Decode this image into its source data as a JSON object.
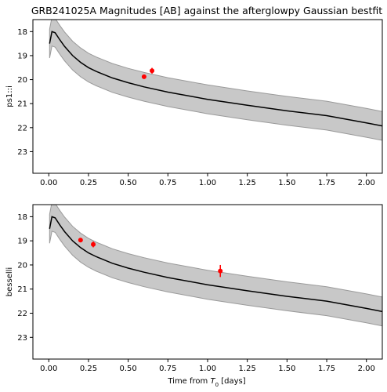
{
  "figure": {
    "title": "GRB241025A Magnitudes [AB] against the afterglowpy Gaussian bestfit",
    "xlabel_text": "Time from ",
    "xlabel_symbol": "T",
    "xlabel_subscript": "0",
    "xlabel_unit": " [days]"
  },
  "colors": {
    "model_line": "#000000",
    "model_band": "#c8c8c8",
    "model_band_edge": "#9a9a9a",
    "data_points": "#ff0000"
  },
  "chart_data": [
    {
      "type": "line",
      "panel": "top",
      "ylabel": "ps1::i",
      "xlim": [
        -0.1,
        2.1
      ],
      "ylim": [
        23.9,
        17.5
      ],
      "y_inverted": true,
      "grid": false,
      "xticks": [
        0.0,
        0.25,
        0.5,
        0.75,
        1.0,
        1.25,
        1.5,
        1.75,
        2.0
      ],
      "xtick_labels": [
        "0.00",
        "0.25",
        "0.50",
        "0.75",
        "1.00",
        "1.25",
        "1.50",
        "1.75",
        "2.00"
      ],
      "show_xtick_labels": true,
      "yticks": [
        18,
        19,
        20,
        21,
        22,
        23
      ],
      "ytick_labels": [
        "18",
        "19",
        "20",
        "21",
        "22",
        "23"
      ],
      "model": {
        "x": [
          0.005,
          0.02,
          0.04,
          0.07,
          0.1,
          0.15,
          0.2,
          0.25,
          0.3,
          0.4,
          0.5,
          0.6,
          0.75,
          1.0,
          1.25,
          1.5,
          1.75,
          2.0,
          2.1
        ],
        "y": [
          18.5,
          18.0,
          18.05,
          18.35,
          18.62,
          19.0,
          19.28,
          19.5,
          19.66,
          19.93,
          20.13,
          20.3,
          20.52,
          20.82,
          21.07,
          21.3,
          21.5,
          21.8,
          21.93
        ],
        "upper": [
          19.1,
          18.6,
          18.65,
          18.95,
          19.22,
          19.6,
          19.88,
          20.1,
          20.26,
          20.53,
          20.73,
          20.9,
          21.12,
          21.42,
          21.67,
          21.9,
          22.1,
          22.4,
          22.53
        ],
        "lower": [
          17.9,
          17.4,
          17.45,
          17.75,
          18.02,
          18.4,
          18.68,
          18.9,
          19.06,
          19.33,
          19.53,
          19.7,
          19.92,
          20.22,
          20.47,
          20.7,
          20.9,
          21.2,
          21.33
        ]
      },
      "points": [
        {
          "x": 0.6,
          "y": 19.88,
          "err": 0.05
        },
        {
          "x": 0.65,
          "y": 19.63,
          "err": 0.12
        }
      ]
    },
    {
      "type": "line",
      "panel": "bottom",
      "ylabel": "besselli",
      "xlim": [
        -0.1,
        2.1
      ],
      "ylim": [
        23.9,
        17.5
      ],
      "y_inverted": true,
      "grid": false,
      "xticks": [
        0.0,
        0.25,
        0.5,
        0.75,
        1.0,
        1.25,
        1.5,
        1.75,
        2.0
      ],
      "xtick_labels": [
        "0.00",
        "0.25",
        "0.50",
        "0.75",
        "1.00",
        "1.25",
        "1.50",
        "1.75",
        "2.00"
      ],
      "show_xtick_labels": true,
      "yticks": [
        18,
        19,
        20,
        21,
        22,
        23
      ],
      "ytick_labels": [
        "18",
        "19",
        "20",
        "21",
        "22",
        "23"
      ],
      "model": {
        "x": [
          0.005,
          0.02,
          0.04,
          0.07,
          0.1,
          0.15,
          0.2,
          0.25,
          0.3,
          0.4,
          0.5,
          0.6,
          0.75,
          1.0,
          1.25,
          1.5,
          1.75,
          2.0,
          2.1
        ],
        "y": [
          18.5,
          18.0,
          18.05,
          18.35,
          18.62,
          19.0,
          19.28,
          19.5,
          19.66,
          19.93,
          20.13,
          20.3,
          20.52,
          20.82,
          21.07,
          21.3,
          21.5,
          21.8,
          21.93
        ],
        "upper": [
          19.1,
          18.6,
          18.65,
          18.95,
          19.22,
          19.6,
          19.88,
          20.1,
          20.26,
          20.53,
          20.73,
          20.9,
          21.12,
          21.42,
          21.67,
          21.9,
          22.1,
          22.4,
          22.53
        ],
        "lower": [
          17.9,
          17.4,
          17.45,
          17.75,
          18.02,
          18.4,
          18.68,
          18.9,
          19.06,
          19.33,
          19.53,
          19.7,
          19.92,
          20.22,
          20.47,
          20.7,
          20.9,
          21.2,
          21.33
        ]
      },
      "points": [
        {
          "x": 0.2,
          "y": 18.97,
          "err": 0.07
        },
        {
          "x": 0.28,
          "y": 19.15,
          "err": 0.12
        },
        {
          "x": 1.08,
          "y": 20.25,
          "err": 0.25
        }
      ]
    }
  ]
}
